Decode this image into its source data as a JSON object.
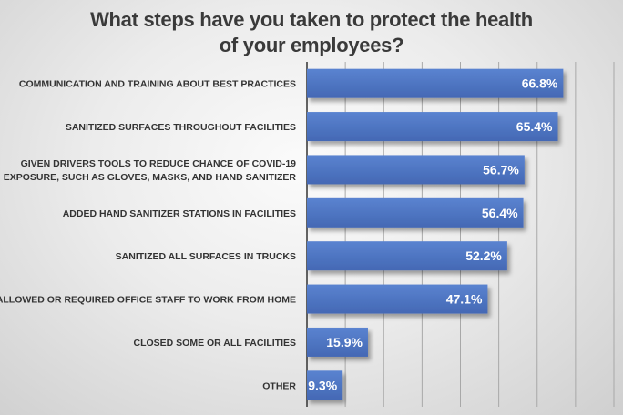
{
  "chart_data": {
    "type": "bar",
    "orientation": "horizontal",
    "title": [
      "What steps have you taken to protect the health",
      "of your employees?"
    ],
    "categories": [
      [
        "COMMUNICATION AND TRAINING ABOUT BEST PRACTICES"
      ],
      [
        "SANITIZED SURFACES THROUGHOUT FACILITIES"
      ],
      [
        "GIVEN DRIVERS TOOLS TO REDUCE CHANCE OF COVID-19",
        "EXPOSURE, SUCH AS GLOVES, MASKS, AND HAND SANITIZER"
      ],
      [
        "ADDED HAND SANITIZER STATIONS IN FACILITIES"
      ],
      [
        "SANITIZED ALL SURFACES IN TRUCKS"
      ],
      [
        "ALLOWED OR REQUIRED OFFICE STAFF TO WORK FROM HOME"
      ],
      [
        "CLOSED SOME OR ALL FACILITIES"
      ],
      [
        "OTHER"
      ]
    ],
    "values": [
      66.8,
      65.4,
      56.7,
      56.4,
      52.2,
      47.1,
      15.9,
      9.3
    ],
    "value_labels": [
      "66.8%",
      "65.4%",
      "56.7%",
      "56.4%",
      "52.2%",
      "47.1%",
      "15.9%",
      "9.3%"
    ],
    "xlim": [
      0,
      80
    ],
    "grid_step": 10,
    "grid": true,
    "xlabel": "",
    "ylabel": "",
    "bar_color": "#4a72c0"
  }
}
